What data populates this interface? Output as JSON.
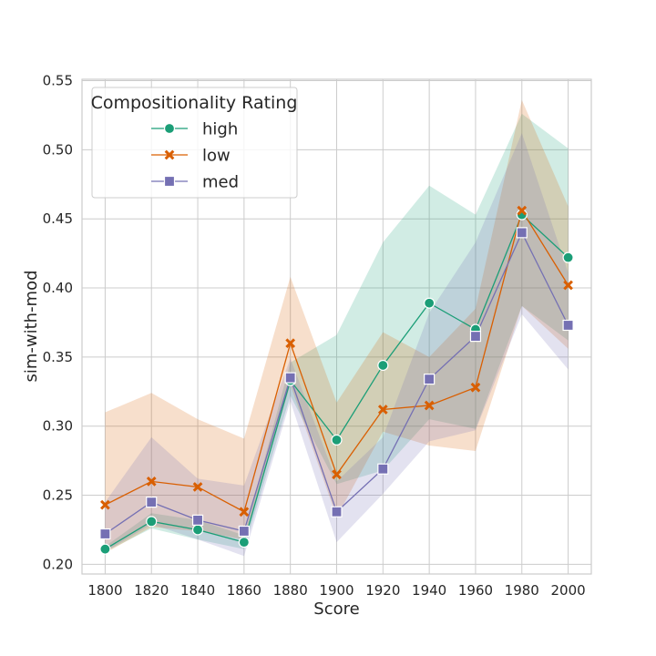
{
  "chart_data": {
    "type": "line",
    "title": "",
    "xlabel": "Score",
    "ylabel": "sim-with-mod",
    "xlim": [
      1790,
      2010
    ],
    "ylim": [
      0.193,
      0.551
    ],
    "x": [
      1800,
      1820,
      1840,
      1860,
      1880,
      1900,
      1920,
      1940,
      1960,
      1980,
      2000
    ],
    "x_ticks": [
      "1800",
      "1820",
      "1840",
      "1860",
      "1880",
      "1900",
      "1920",
      "1940",
      "1960",
      "1980",
      "2000"
    ],
    "y_ticks": [
      0.2,
      0.25,
      0.3,
      0.35,
      0.4,
      0.45,
      0.5,
      0.55
    ],
    "y_tick_labels": [
      "0.20",
      "0.25",
      "0.30",
      "0.35",
      "0.40",
      "0.45",
      "0.50",
      "0.55"
    ],
    "grid": true,
    "legend": {
      "title": "Compositionality Rating",
      "position": "top-left"
    },
    "series": [
      {
        "name": "high",
        "marker": "circle",
        "color": "#1b9e77",
        "values": [
          0.211,
          0.231,
          0.225,
          0.216,
          0.333,
          0.29,
          0.344,
          0.389,
          0.37,
          0.453,
          0.422
        ],
        "ci_lower": [
          0.209,
          0.226,
          0.218,
          0.211,
          0.322,
          0.258,
          0.268,
          0.305,
          0.298,
          0.387,
          0.362
        ],
        "ci_upper": [
          0.213,
          0.237,
          0.232,
          0.221,
          0.346,
          0.366,
          0.433,
          0.474,
          0.453,
          0.526,
          0.501
        ]
      },
      {
        "name": "low",
        "marker": "x",
        "color": "#d95f02",
        "values": [
          0.243,
          0.26,
          0.256,
          0.238,
          0.36,
          0.265,
          0.312,
          0.315,
          0.328,
          0.456,
          0.402
        ],
        "ci_lower": [
          0.208,
          0.227,
          0.224,
          0.218,
          0.33,
          0.234,
          0.296,
          0.286,
          0.282,
          0.387,
          0.356
        ],
        "ci_upper": [
          0.31,
          0.324,
          0.305,
          0.291,
          0.408,
          0.317,
          0.368,
          0.35,
          0.385,
          0.536,
          0.459
        ]
      },
      {
        "name": "med",
        "marker": "square",
        "color": "#7570b3",
        "values": [
          0.222,
          0.245,
          0.232,
          0.224,
          0.335,
          0.238,
          0.269,
          0.334,
          0.365,
          0.44,
          0.373
        ],
        "ci_lower": [
          0.209,
          0.229,
          0.218,
          0.206,
          0.318,
          0.216,
          0.251,
          0.289,
          0.297,
          0.381,
          0.341
        ],
        "ci_upper": [
          0.245,
          0.292,
          0.262,
          0.257,
          0.349,
          0.26,
          0.292,
          0.382,
          0.433,
          0.512,
          0.411
        ]
      }
    ]
  }
}
